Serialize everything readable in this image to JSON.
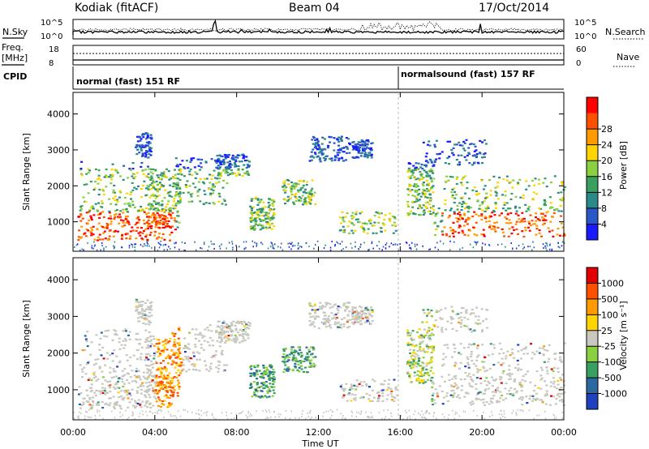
{
  "header": {
    "site": "Kodiak (fitACF)",
    "beam": "Beam 04",
    "date": "17/Oct/2014"
  },
  "summary": {
    "nsky_label": "N.Sky",
    "nsearch_label": "N.Search",
    "left_ticks": [
      "10^5",
      "10^0"
    ],
    "right_ticks": [
      "10^5",
      "10^0"
    ],
    "freq_label": [
      "Freq.",
      "[MHz]"
    ],
    "freq_ticks": [
      "18",
      "8"
    ],
    "nave_label": "Nave",
    "nave_ticks": [
      "60",
      "0"
    ],
    "cpid_label": "CPID",
    "cpid_1": "normal (fast) 151 RF",
    "cpid_2": "normalsound (fast) 157 RF"
  },
  "chart_data": [
    {
      "type": "heatmap",
      "title": "",
      "xlabel": "Time UT",
      "ylabel": "Slant Range [km]",
      "xticks": [
        "00:00",
        "04:00",
        "08:00",
        "12:00",
        "16:00",
        "20:00",
        "00:00"
      ],
      "yticks": [
        "1000",
        "2000",
        "3000",
        "4000"
      ],
      "ylim": [
        180,
        4600
      ],
      "colorbar": {
        "label": "Power [dB]",
        "ticks": [
          "4",
          "8",
          "12",
          "16",
          "20",
          "24",
          "28"
        ],
        "colors": [
          "#1a1aff",
          "#2a58c8",
          "#2a8a8a",
          "#3aa060",
          "#8ad040",
          "#ffd400",
          "#ff9a00",
          "#ff5000",
          "#ff0000"
        ]
      }
    },
    {
      "type": "heatmap",
      "title": "",
      "xlabel": "Time UT",
      "ylabel": "Slant Range [km]",
      "xticks": [
        "00:00",
        "04:00",
        "08:00",
        "12:00",
        "16:00",
        "20:00",
        "00:00"
      ],
      "yticks": [
        "1000",
        "2000",
        "3000",
        "4000"
      ],
      "ylim": [
        180,
        4600
      ],
      "colorbar": {
        "label": "Velocity [m s⁻¹]",
        "ticks": [
          "1000",
          "500",
          "100",
          "25",
          "-25",
          "-100",
          "-500",
          "-1000"
        ],
        "colors": [
          "#2040c0",
          "#2a6aa0",
          "#3aa060",
          "#8ad040",
          "#c8c8c0",
          "#ffd400",
          "#ff9a00",
          "#ff5000",
          "#e00000"
        ]
      }
    }
  ]
}
